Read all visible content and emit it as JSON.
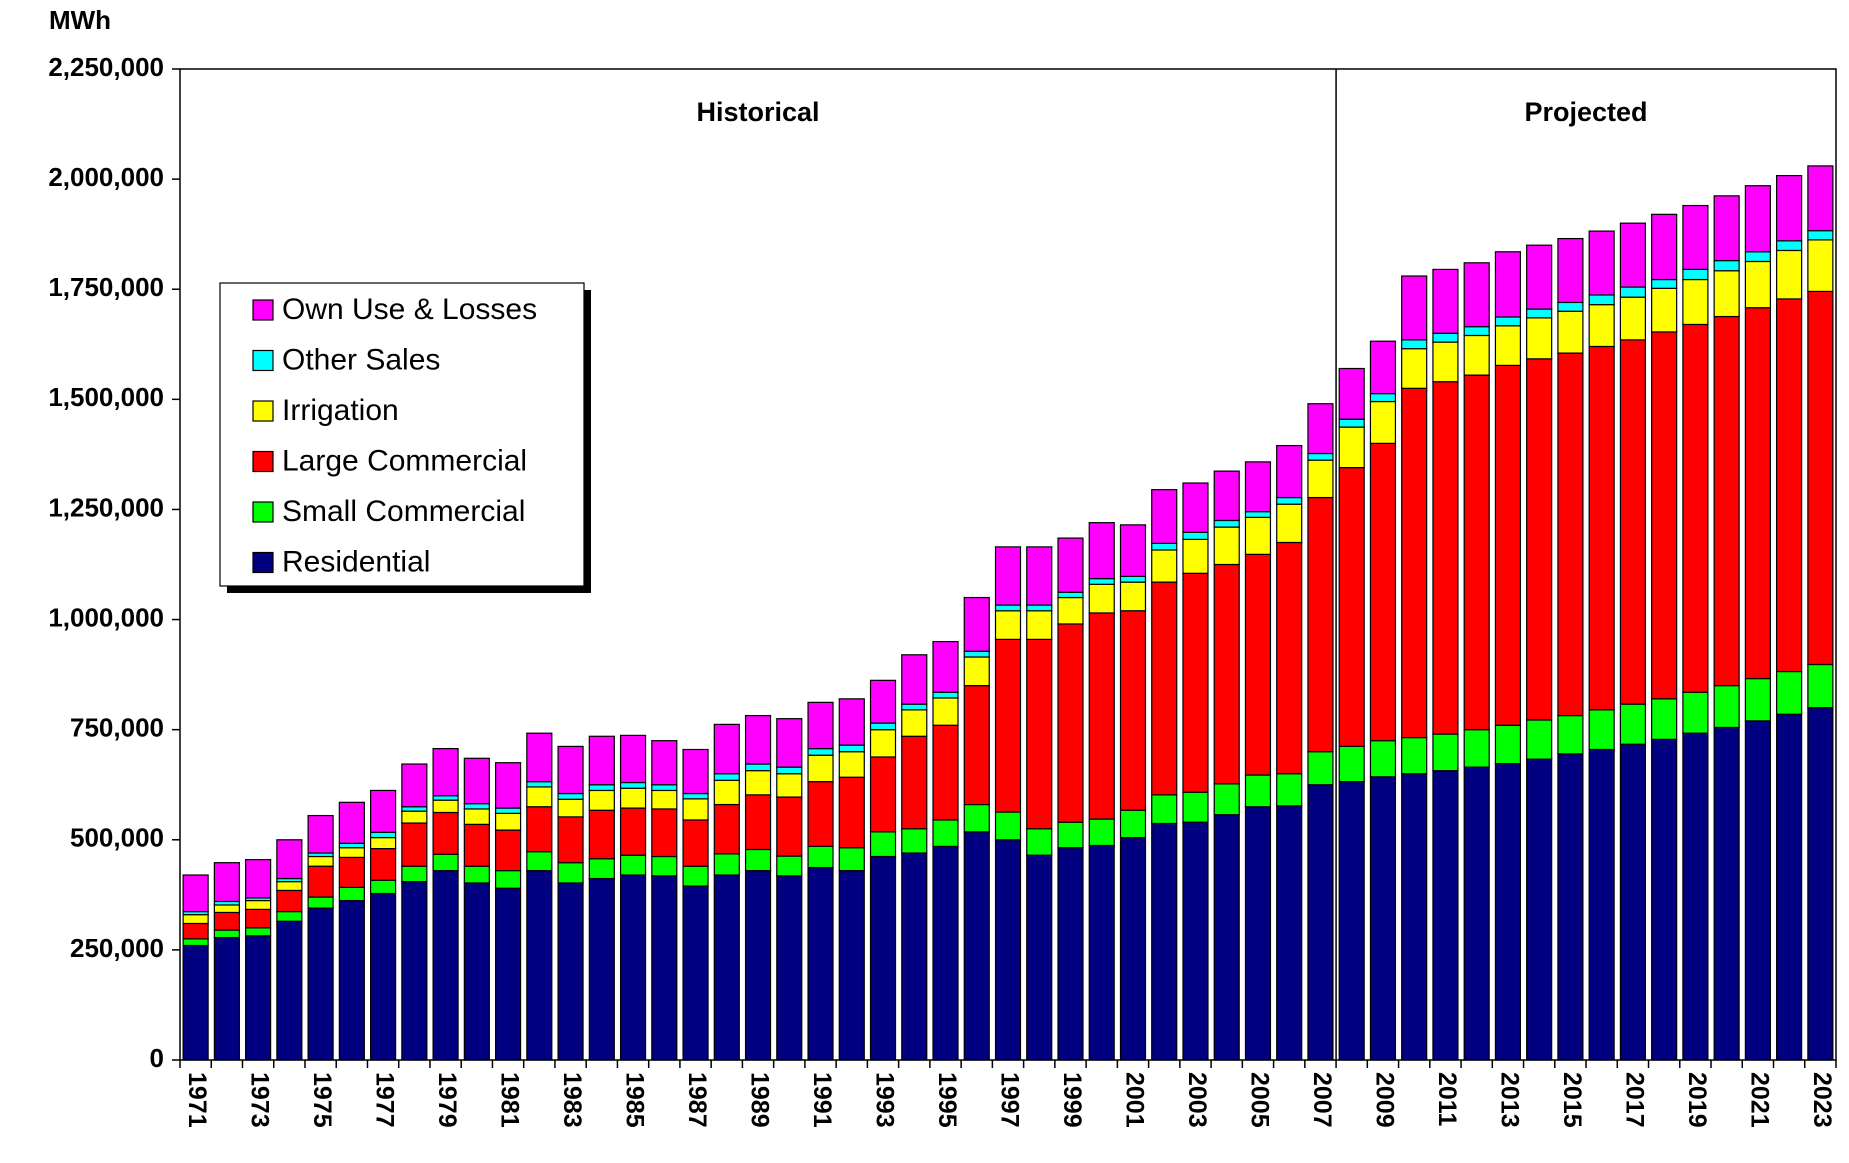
{
  "chart_data": {
    "type": "stacked_bar",
    "y_axis_label": "MWh",
    "annotations": [
      "Historical",
      "Projected"
    ],
    "categories": [
      "1971",
      null,
      "1973",
      null,
      "1975",
      null,
      "1977",
      null,
      "1979",
      null,
      "1981",
      null,
      "1983",
      null,
      "1985",
      null,
      "1987",
      null,
      "1989",
      null,
      "1991",
      null,
      "1993",
      null,
      "1995",
      null,
      "1997",
      null,
      "1999",
      null,
      "2001",
      null,
      "2003",
      null,
      "2005",
      null,
      "2007",
      null,
      "2009",
      null,
      "2011",
      null,
      "2013",
      null,
      "2015",
      null,
      "2017",
      null,
      "2019",
      null,
      "2021",
      null,
      "2023"
    ],
    "series": [
      {
        "name": "Residential",
        "color": "#000080",
        "values": [
          260000,
          278000,
          282000,
          315000,
          345000,
          362000,
          378000,
          405000,
          430000,
          402000,
          390000,
          430000,
          402000,
          412000,
          420000,
          418000,
          395000,
          420000,
          430000,
          418000,
          437000,
          430000,
          462000,
          470000,
          485000,
          518000,
          500000,
          465000,
          482000,
          487000,
          505000,
          537000,
          540000,
          557000,
          575000,
          577000,
          625000,
          632000,
          643000,
          650000,
          657000,
          665000,
          673000,
          683000,
          695000,
          705000,
          717000,
          728000,
          742000,
          755000,
          770000,
          785000,
          800000
        ]
      },
      {
        "name": "Small Commercial",
        "color": "#00ff00",
        "values": [
          15000,
          17000,
          18000,
          22000,
          25000,
          30000,
          30000,
          35000,
          37000,
          38000,
          40000,
          43000,
          46000,
          45000,
          45000,
          44000,
          45000,
          48000,
          48000,
          45000,
          48000,
          52000,
          56000,
          55000,
          60000,
          62000,
          63000,
          60000,
          58000,
          60000,
          62000,
          65000,
          68000,
          70000,
          72000,
          73000,
          75000,
          80000,
          82000,
          82000,
          83000,
          85000,
          87000,
          89000,
          87000,
          90000,
          91000,
          92000,
          93000,
          95000,
          96000,
          97000,
          98000
        ]
      },
      {
        "name": "Large Commercial",
        "color": "#ff0000",
        "values": [
          35000,
          40000,
          42000,
          48000,
          70000,
          68000,
          72000,
          98000,
          95000,
          95000,
          92000,
          102000,
          104000,
          110000,
          107000,
          108000,
          105000,
          112000,
          124000,
          134000,
          147000,
          160000,
          170000,
          210000,
          215000,
          270000,
          392000,
          430000,
          450000,
          468000,
          453000,
          483000,
          497000,
          498000,
          501000,
          525000,
          577000,
          633000,
          675000,
          793000,
          800000,
          805000,
          817000,
          820000,
          823000,
          825000,
          827000,
          833000,
          835000,
          838000,
          842000,
          846000,
          847000
        ]
      },
      {
        "name": "Irrigation",
        "color": "#ffff00",
        "values": [
          20000,
          17000,
          20000,
          20000,
          22000,
          22000,
          25000,
          27000,
          28000,
          35000,
          38000,
          45000,
          40000,
          45000,
          45000,
          42000,
          48000,
          55000,
          55000,
          53000,
          60000,
          58000,
          62000,
          60000,
          62000,
          65000,
          65000,
          65000,
          60000,
          65000,
          65000,
          73000,
          77000,
          85000,
          84000,
          87000,
          85000,
          92000,
          95000,
          90000,
          90000,
          90000,
          90000,
          93000,
          95000,
          95000,
          97000,
          99000,
          102000,
          104000,
          105000,
          110000,
          117000
        ]
      },
      {
        "name": "Other Sales",
        "color": "#00ffff",
        "values": [
          7000,
          8000,
          6000,
          7000,
          8000,
          10000,
          12000,
          10000,
          10000,
          12000,
          12000,
          12000,
          13000,
          13000,
          13000,
          13000,
          12000,
          15000,
          15000,
          15000,
          15000,
          15000,
          15000,
          13000,
          13000,
          13000,
          13000,
          13000,
          12000,
          13000,
          13000,
          15000,
          16000,
          15000,
          13000,
          15000,
          15000,
          18000,
          18000,
          20000,
          20000,
          20000,
          20000,
          20000,
          20000,
          22000,
          23000,
          20000,
          23000,
          23000,
          22000,
          22000,
          21000
        ]
      },
      {
        "name": "Own Use & Losses",
        "color": "#ff00ff",
        "values": [
          83000,
          88000,
          87000,
          88000,
          85000,
          93000,
          95000,
          97000,
          107000,
          103000,
          103000,
          110000,
          107000,
          110000,
          107000,
          100000,
          100000,
          112000,
          110000,
          110000,
          105000,
          105000,
          97000,
          112000,
          115000,
          122000,
          132000,
          132000,
          123000,
          127000,
          117000,
          122000,
          112000,
          112000,
          113000,
          118000,
          113000,
          115000,
          119000,
          145000,
          145000,
          145000,
          148000,
          145000,
          145000,
          145000,
          145000,
          148000,
          145000,
          147000,
          150000,
          148000,
          147000
        ]
      }
    ],
    "ylim": [
      0,
      2250000
    ],
    "yticks": [
      0,
      {
        "value": 250000,
        "label": "250,000"
      },
      {
        "value": 500000,
        "label": "500,000"
      },
      {
        "value": 750000,
        "label": "750,000"
      },
      {
        "value": 1000000,
        "label": "1,000,000"
      },
      {
        "value": 1250000,
        "label": "1,250,000"
      },
      {
        "value": 1500000,
        "label": "1,500,000"
      },
      {
        "value": 1750000,
        "label": "1,750,000"
      },
      {
        "value": 2000000,
        "label": "2,000,000"
      },
      {
        "value": 2250000,
        "label": "2,250,000"
      }
    ],
    "grid": false,
    "legend": "upper left"
  }
}
